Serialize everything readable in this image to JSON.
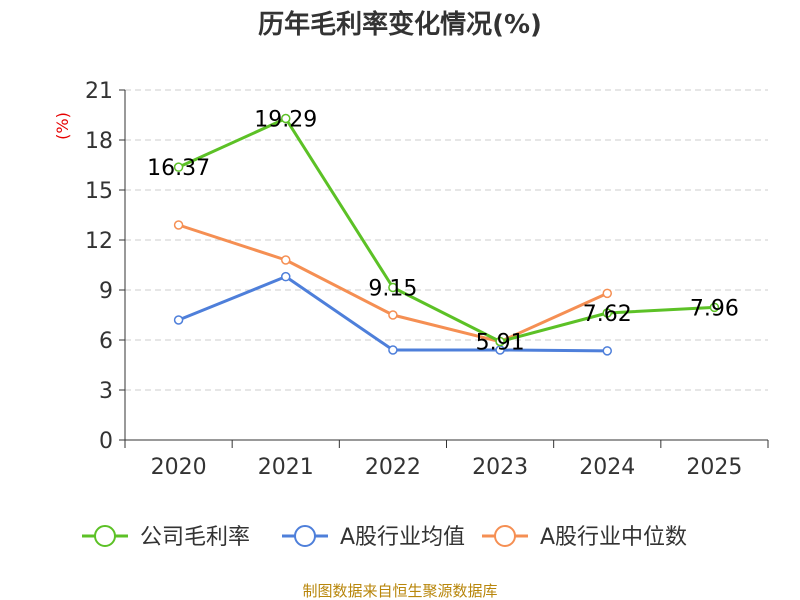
{
  "chart_data": {
    "type": "line",
    "title": "历年毛利率变化情况(%)",
    "ylabel": "(%)",
    "xlabel": "",
    "categories": [
      "2020",
      "2021",
      "2022",
      "2023",
      "2024",
      "2025"
    ],
    "ylim": [
      0,
      21
    ],
    "yticks": [
      "0",
      "3",
      "6",
      "9",
      "12",
      "15",
      "18",
      "21"
    ],
    "grid": true,
    "series": [
      {
        "name": "公司毛利率",
        "color": "#5cc126",
        "values": [
          16.37,
          19.29,
          9.15,
          5.91,
          7.62,
          7.96
        ],
        "labels": [
          "16.37",
          "19.29",
          "9.15",
          "5.91",
          "7.62",
          "7.96"
        ]
      },
      {
        "name": "A股行业均值",
        "color": "#4e7fda",
        "values": [
          7.2,
          9.8,
          5.4,
          5.4,
          5.35,
          null
        ]
      },
      {
        "name": "A股行业中位数",
        "color": "#f58f53",
        "values": [
          12.9,
          10.8,
          7.5,
          5.9,
          8.8,
          null
        ]
      }
    ],
    "legend_position": "bottom",
    "source": "制图数据来自恒生聚源数据库"
  }
}
